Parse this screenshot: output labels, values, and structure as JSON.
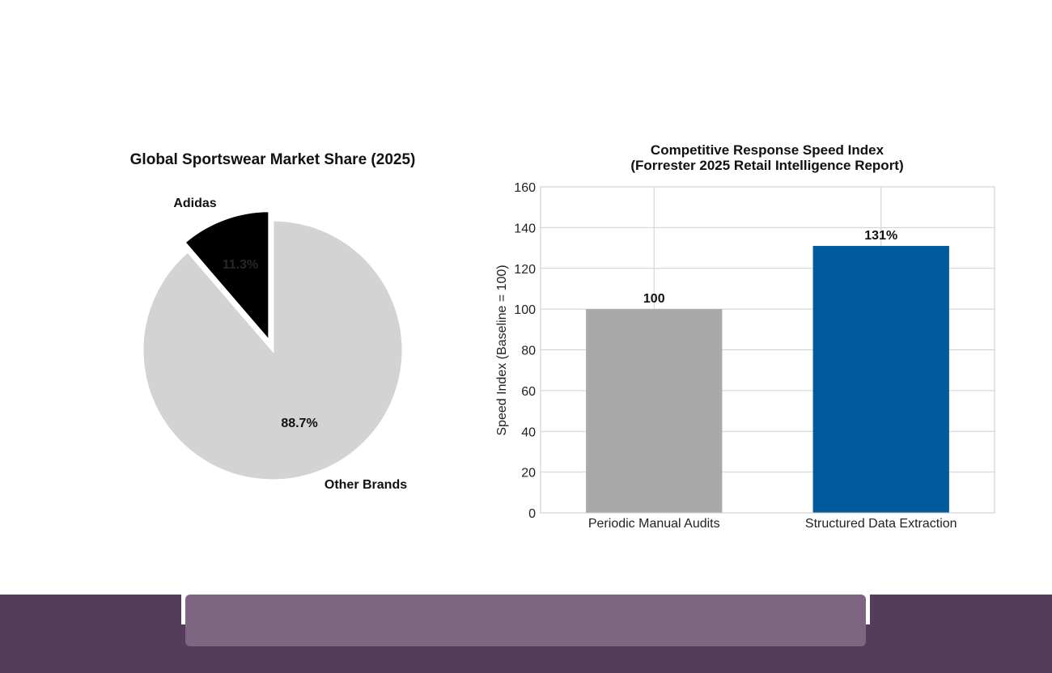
{
  "chart_data": [
    {
      "type": "pie",
      "title": "Global Sportswear Market Share (2025)",
      "slices": [
        {
          "label": "Adidas",
          "value": 11.3,
          "display": "11.3%",
          "color": "#000000",
          "pct_color": "#262626",
          "exploded": true
        },
        {
          "label": "Other Brands",
          "value": 88.7,
          "display": "88.7%",
          "color": "#d3d3d3",
          "pct_color": "#111111",
          "exploded": false
        }
      ]
    },
    {
      "type": "bar",
      "title": "Competitive Response Speed Index\n(Forrester 2025 Retail Intelligence Report)",
      "title_lines": [
        "Competitive Response Speed Index",
        "(Forrester 2025 Retail Intelligence Report)"
      ],
      "categories": [
        "Periodic Manual Audits",
        "Structured Data Extraction"
      ],
      "values": [
        100,
        131
      ],
      "value_labels": [
        "100",
        "131%"
      ],
      "colors": [
        "#a9a9a9",
        "#005a9c"
      ],
      "xlabel": "",
      "ylabel": "Speed Index (Baseline = 100)",
      "ylim": [
        0,
        160
      ],
      "yticks": [
        0,
        20,
        40,
        60,
        80,
        100,
        120,
        140,
        160
      ],
      "grid": true
    }
  ],
  "footer": {
    "base_color": "#553c5a",
    "panel_color": "#7e6582"
  }
}
